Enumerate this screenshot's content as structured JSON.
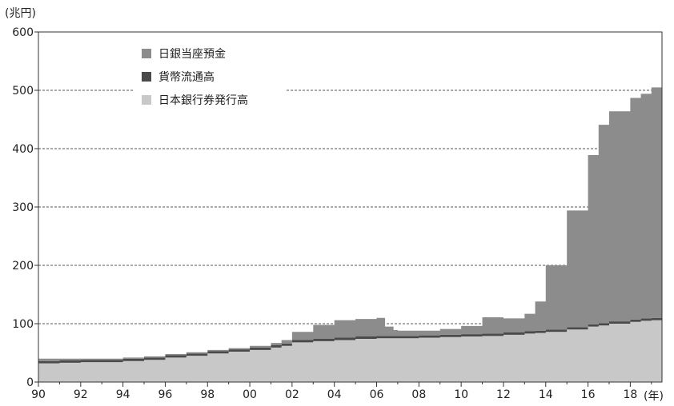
{
  "chart_data": {
    "type": "area",
    "stacked": true,
    "y_unit": "(兆円)",
    "x_unit": "(年)",
    "xlim": [
      1990,
      2019.5
    ],
    "ylim": [
      0,
      600
    ],
    "y_ticks": [
      0,
      100,
      200,
      300,
      400,
      500,
      600
    ],
    "x_ticks": [
      1990,
      1992,
      1994,
      1996,
      1998,
      2000,
      2002,
      2004,
      2006,
      2008,
      2010,
      2012,
      2014,
      2016,
      2018
    ],
    "x_tick_labels": [
      "90",
      "92",
      "94",
      "96",
      "98",
      "00",
      "02",
      "04",
      "06",
      "08",
      "10",
      "12",
      "14",
      "16",
      "18"
    ],
    "grid": "horizontal-dashed",
    "legend_position": "top-left",
    "x": [
      1990,
      1991,
      1992,
      1993,
      1994,
      1995,
      1996,
      1997,
      1998,
      1999,
      2000,
      2001,
      2001.5,
      2002,
      2003,
      2004,
      2005,
      2006,
      2006.4,
      2006.8,
      2007,
      2008,
      2009,
      2010,
      2011,
      2012,
      2013,
      2013.5,
      2014,
      2015,
      2016,
      2016.5,
      2017,
      2018,
      2018.5,
      2019,
      2019.5
    ],
    "series": [
      {
        "name": "日本銀行券発行高",
        "color": "#c8c8c8",
        "values": [
          32,
          33,
          34,
          34,
          36,
          38,
          42,
          45,
          49,
          52,
          55,
          59,
          62,
          68,
          70,
          72,
          74,
          75,
          75,
          75,
          75,
          76,
          77,
          78,
          79,
          81,
          83,
          84,
          86,
          90,
          95,
          97,
          100,
          103,
          105,
          106,
          105
        ]
      },
      {
        "name": "貨幣流通高",
        "color": "#4a4a4a",
        "values": [
          4,
          4,
          4,
          4,
          4,
          4,
          4,
          4,
          4,
          4,
          4,
          4,
          4,
          4,
          4,
          4,
          4,
          4,
          4,
          4,
          4,
          4,
          4,
          4,
          4,
          4,
          4,
          4,
          4,
          4,
          4,
          4,
          4,
          4,
          4,
          4,
          4
        ]
      },
      {
        "name": "日銀当座預金",
        "color": "#8c8c8c",
        "values": [
          4,
          3,
          2,
          2,
          2,
          2,
          2,
          2,
          2,
          2,
          3,
          4,
          6,
          14,
          24,
          30,
          30,
          31,
          16,
          10,
          9,
          8,
          10,
          14,
          28,
          24,
          30,
          50,
          110,
          200,
          290,
          340,
          360,
          380,
          385,
          395,
          405
        ]
      }
    ]
  }
}
